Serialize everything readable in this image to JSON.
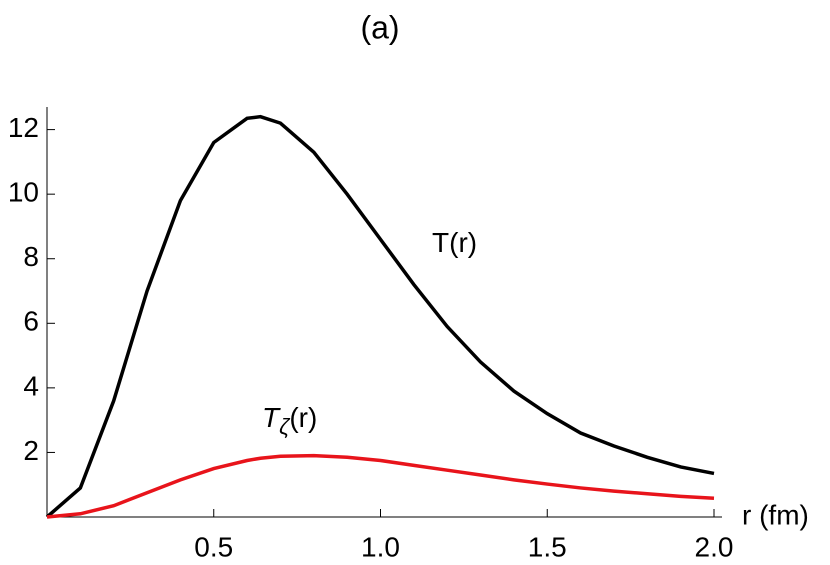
{
  "chart_data": {
    "type": "line",
    "title": "(a)",
    "x_label": "r (fm)",
    "x": [
      0,
      0.1,
      0.2,
      0.3,
      0.4,
      0.5,
      0.6,
      0.64,
      0.7,
      0.8,
      0.9,
      1.0,
      1.1,
      1.2,
      1.3,
      1.4,
      1.5,
      1.6,
      1.7,
      1.8,
      1.9,
      2.0
    ],
    "series": [
      {
        "name": "T(r)",
        "color": "#000000",
        "values": [
          0,
          0.9,
          3.6,
          7.0,
          9.8,
          11.6,
          12.35,
          12.4,
          12.2,
          11.3,
          10.0,
          8.6,
          7.2,
          5.9,
          4.8,
          3.9,
          3.2,
          2.6,
          2.2,
          1.85,
          1.55,
          1.35
        ]
      },
      {
        "name": "Tζ(r)",
        "color": "#e8141b",
        "values": [
          0,
          0.1,
          0.35,
          0.75,
          1.15,
          1.5,
          1.75,
          1.82,
          1.88,
          1.9,
          1.85,
          1.75,
          1.6,
          1.45,
          1.3,
          1.15,
          1.02,
          0.9,
          0.8,
          0.72,
          0.64,
          0.58
        ]
      }
    ],
    "xlim": [
      0,
      2.0
    ],
    "ylim": [
      0,
      12.7
    ],
    "xticks": [
      0.5,
      {
        "value": 1,
        "label": "1.0"
      },
      1.5,
      {
        "value": 2,
        "label": "2.0"
      }
    ],
    "yticks": [
      2,
      4,
      6,
      8,
      10,
      12
    ]
  }
}
